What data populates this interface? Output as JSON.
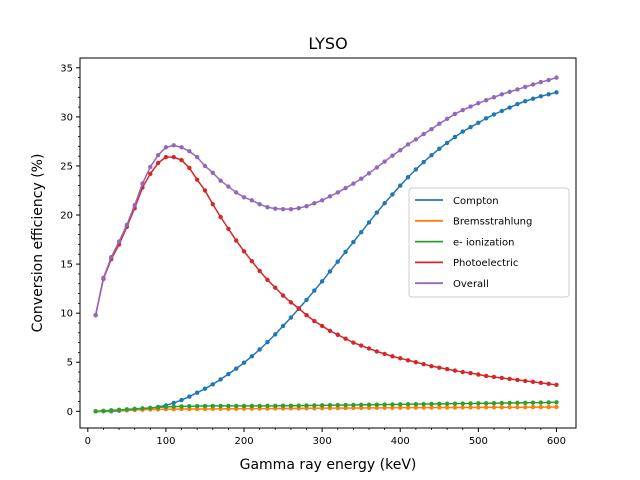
{
  "chart_data": {
    "type": "line",
    "title": "LYSO",
    "xlabel": "Gamma ray energy (keV)",
    "ylabel": "Conversion efficiency (%)",
    "xlim": [
      -10,
      625
    ],
    "ylim": [
      -1.7,
      36.0
    ],
    "xticks": [
      0,
      100,
      200,
      300,
      400,
      500,
      600
    ],
    "yticks": [
      0,
      5,
      10,
      15,
      20,
      25,
      30,
      35
    ],
    "grid": false,
    "legend_position": "center-right",
    "x": [
      10,
      20,
      30,
      40,
      50,
      60,
      70,
      80,
      90,
      100,
      110,
      120,
      130,
      140,
      150,
      160,
      170,
      180,
      190,
      200,
      210,
      220,
      230,
      240,
      250,
      260,
      270,
      280,
      290,
      300,
      310,
      320,
      330,
      340,
      350,
      360,
      370,
      380,
      390,
      400,
      410,
      420,
      430,
      440,
      450,
      460,
      470,
      480,
      490,
      500,
      510,
      520,
      530,
      540,
      550,
      560,
      570,
      580,
      590,
      600
    ],
    "series": [
      {
        "name": "Compton",
        "color": "#1f77b4",
        "values": [
          0.0,
          0.0,
          0.0,
          0.05,
          0.1,
          0.15,
          0.2,
          0.3,
          0.45,
          0.6,
          0.85,
          1.15,
          1.5,
          1.9,
          2.3,
          2.75,
          3.25,
          3.8,
          4.35,
          4.95,
          5.6,
          6.3,
          7.05,
          7.85,
          8.7,
          9.55,
          10.45,
          11.35,
          12.3,
          13.25,
          14.25,
          15.25,
          16.25,
          17.25,
          18.25,
          19.25,
          20.25,
          21.2,
          22.1,
          23.0,
          23.85,
          24.65,
          25.4,
          26.1,
          26.75,
          27.35,
          27.95,
          28.5,
          28.95,
          29.4,
          29.85,
          30.25,
          30.6,
          30.95,
          31.3,
          31.6,
          31.85,
          32.1,
          32.3,
          32.5
        ]
      },
      {
        "name": "Bremsstrahlung",
        "color": "#ff7f0e",
        "values": [
          0.0,
          0.03,
          0.06,
          0.09,
          0.12,
          0.15,
          0.17,
          0.19,
          0.2,
          0.21,
          0.22,
          0.23,
          0.23,
          0.24,
          0.24,
          0.25,
          0.25,
          0.26,
          0.26,
          0.27,
          0.27,
          0.28,
          0.28,
          0.29,
          0.29,
          0.3,
          0.3,
          0.31,
          0.31,
          0.32,
          0.32,
          0.33,
          0.33,
          0.34,
          0.34,
          0.35,
          0.35,
          0.36,
          0.36,
          0.37,
          0.37,
          0.38,
          0.38,
          0.38,
          0.39,
          0.39,
          0.39,
          0.4,
          0.4,
          0.4,
          0.41,
          0.41,
          0.41,
          0.42,
          0.42,
          0.42,
          0.43,
          0.43,
          0.43,
          0.44
        ]
      },
      {
        "name": "e- ionization",
        "color": "#2ca02c",
        "values": [
          0.0,
          0.05,
          0.1,
          0.15,
          0.2,
          0.25,
          0.3,
          0.35,
          0.4,
          0.45,
          0.48,
          0.5,
          0.52,
          0.53,
          0.54,
          0.55,
          0.55,
          0.55,
          0.55,
          0.55,
          0.55,
          0.55,
          0.56,
          0.56,
          0.57,
          0.57,
          0.58,
          0.59,
          0.6,
          0.61,
          0.62,
          0.63,
          0.64,
          0.65,
          0.66,
          0.67,
          0.68,
          0.69,
          0.7,
          0.71,
          0.72,
          0.73,
          0.74,
          0.75,
          0.76,
          0.77,
          0.78,
          0.79,
          0.8,
          0.81,
          0.82,
          0.83,
          0.84,
          0.85,
          0.86,
          0.87,
          0.88,
          0.89,
          0.9,
          0.92
        ]
      },
      {
        "name": "Photoelectric",
        "color": "#d62728",
        "values": [
          9.8,
          13.5,
          15.5,
          17.0,
          18.8,
          20.7,
          22.8,
          24.2,
          25.3,
          25.9,
          25.9,
          25.6,
          24.8,
          23.6,
          22.5,
          21.1,
          19.8,
          18.6,
          17.4,
          16.3,
          15.3,
          14.3,
          13.4,
          12.6,
          11.8,
          11.1,
          10.5,
          9.8,
          9.2,
          8.7,
          8.2,
          7.8,
          7.4,
          7.0,
          6.7,
          6.4,
          6.1,
          5.85,
          5.6,
          5.4,
          5.2,
          5.0,
          4.8,
          4.6,
          4.45,
          4.3,
          4.15,
          4.0,
          3.9,
          3.75,
          3.6,
          3.5,
          3.4,
          3.3,
          3.2,
          3.1,
          3.0,
          2.9,
          2.8,
          2.7
        ]
      },
      {
        "name": "Overall",
        "color": "#9467bd",
        "values": [
          9.8,
          13.6,
          15.7,
          17.3,
          19.0,
          21.0,
          23.2,
          24.9,
          26.1,
          26.9,
          27.1,
          26.9,
          26.5,
          25.9,
          25.0,
          24.3,
          23.5,
          22.9,
          22.3,
          21.8,
          21.5,
          21.1,
          20.8,
          20.65,
          20.6,
          20.6,
          20.7,
          20.9,
          21.2,
          21.5,
          21.9,
          22.3,
          22.75,
          23.2,
          23.7,
          24.25,
          24.85,
          25.45,
          26.05,
          26.6,
          27.2,
          27.7,
          28.25,
          28.75,
          29.3,
          29.8,
          30.3,
          30.7,
          31.05,
          31.4,
          31.7,
          32.0,
          32.3,
          32.55,
          32.8,
          33.05,
          33.3,
          33.55,
          33.75,
          34.0
        ]
      }
    ]
  }
}
